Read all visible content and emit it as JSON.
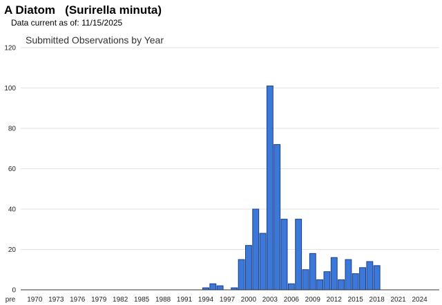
{
  "header": {
    "species_common": "A Diatom",
    "species_scientific": "(Surirella minuta)",
    "data_current_label": "Data current as of:",
    "data_current_date": "11/15/2025"
  },
  "chart_data": {
    "type": "bar",
    "title": "Submitted Observations by Year",
    "xlabel": "",
    "ylabel": "",
    "ylim": [
      0,
      120
    ],
    "yticks": [
      0,
      20,
      40,
      60,
      80,
      100,
      120
    ],
    "grid": true,
    "legend": "none",
    "bar_color": "#3b78d8",
    "bar_edge_color": "#1a3e8c",
    "categories": [
      "pre",
      "1970",
      "1971",
      "1972",
      "1973",
      "1974",
      "1975",
      "1976",
      "1977",
      "1978",
      "1979",
      "1980",
      "1981",
      "1982",
      "1983",
      "1984",
      "1985",
      "1986",
      "1987",
      "1988",
      "1989",
      "1990",
      "1991",
      "1992",
      "1993",
      "1994",
      "1995",
      "1996",
      "1997",
      "1998",
      "1999",
      "2000",
      "2001",
      "2002",
      "2003",
      "2004",
      "2005",
      "2006",
      "2007",
      "2008",
      "2009",
      "2010",
      "2011",
      "2012",
      "2013",
      "2014",
      "2015",
      "2016",
      "2017",
      "2018",
      "2019",
      "2020",
      "2021",
      "2022",
      "2023",
      "2024",
      "2025"
    ],
    "tick_labels": [
      "pre",
      "1970",
      "1973",
      "1976",
      "1979",
      "1982",
      "1985",
      "1988",
      "1991",
      "1994",
      "1997",
      "2000",
      "2003",
      "2006",
      "2009",
      "2012",
      "2015",
      "2018",
      "2021",
      "2024"
    ],
    "values": [
      0,
      0,
      0,
      0,
      0,
      0,
      0,
      0,
      0,
      0,
      0,
      0,
      0,
      0,
      0,
      0,
      0,
      0,
      0,
      0,
      0,
      0,
      0,
      0,
      0,
      1,
      3,
      2,
      0,
      1,
      15,
      22,
      40,
      28,
      101,
      72,
      35,
      3,
      35,
      10,
      18,
      5,
      9,
      16,
      5,
      15,
      8,
      11,
      14,
      12,
      0,
      0,
      0,
      0,
      0,
      0,
      0
    ]
  }
}
